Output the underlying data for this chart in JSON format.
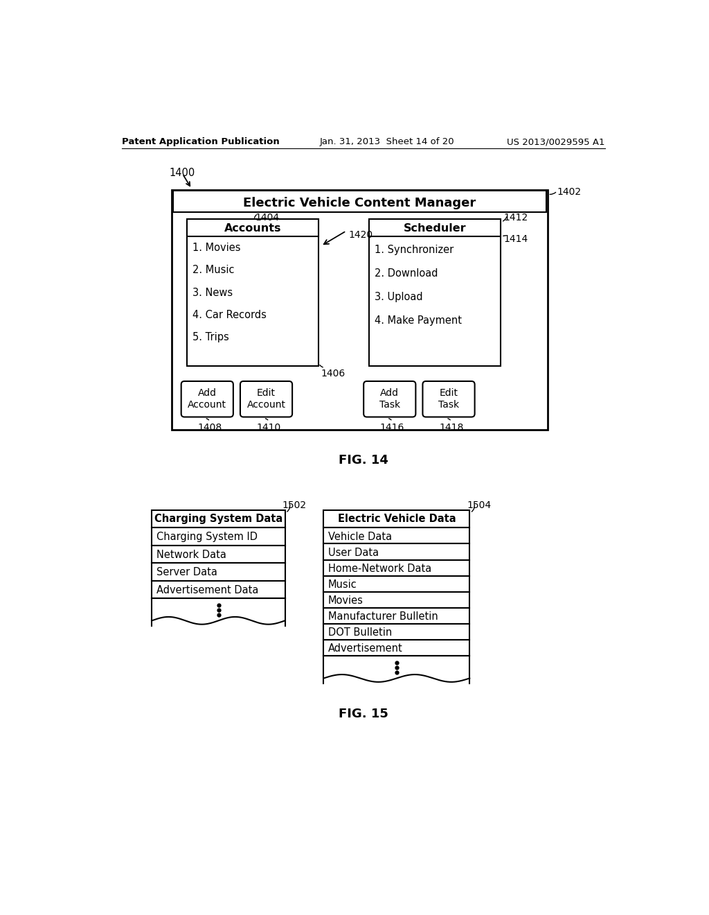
{
  "header_left": "Patent Application Publication",
  "header_center": "Jan. 31, 2013  Sheet 14 of 20",
  "header_right": "US 2013/0029595 A1",
  "fig14_label": "FIG. 14",
  "fig15_label": "FIG. 15",
  "main_box_label": "1400",
  "main_box_ref": "1402",
  "main_title": "Electric Vehicle Content Manager",
  "accounts_title": "Accounts",
  "accounts_ref": "1404",
  "accounts_ref2": "1406",
  "accounts_arrow_ref": "1420",
  "accounts_items": [
    "1. Movies",
    "2. Music",
    "3. News",
    "4. Car Records",
    "5. Trips"
  ],
  "scheduler_title": "Scheduler",
  "scheduler_ref": "1412",
  "scheduler_ref2": "1414",
  "scheduler_items": [
    "1. Synchronizer",
    "2. Download",
    "3. Upload",
    "4. Make Payment"
  ],
  "btn_add_account": "Add\nAccount",
  "btn_add_account_ref": "1408",
  "btn_edit_account": "Edit\nAccount",
  "btn_edit_account_ref": "1410",
  "btn_add_task": "Add\nTask",
  "btn_add_task_ref": "1416",
  "btn_edit_task": "Edit\nTask",
  "btn_edit_task_ref": "1418",
  "charging_title": "Charging System Data",
  "charging_ref": "1502",
  "charging_items": [
    "Charging System ID",
    "Network Data",
    "Server Data",
    "Advertisement Data"
  ],
  "ev_title": "Electric Vehicle Data",
  "ev_ref": "1504",
  "ev_items": [
    "Vehicle Data",
    "User Data",
    "Home-Network Data",
    "Music",
    "Movies",
    "Manufacturer Bulletin",
    "DOT Bulletin",
    "Advertisement"
  ],
  "bg_color": "#ffffff",
  "text_color": "#000000"
}
